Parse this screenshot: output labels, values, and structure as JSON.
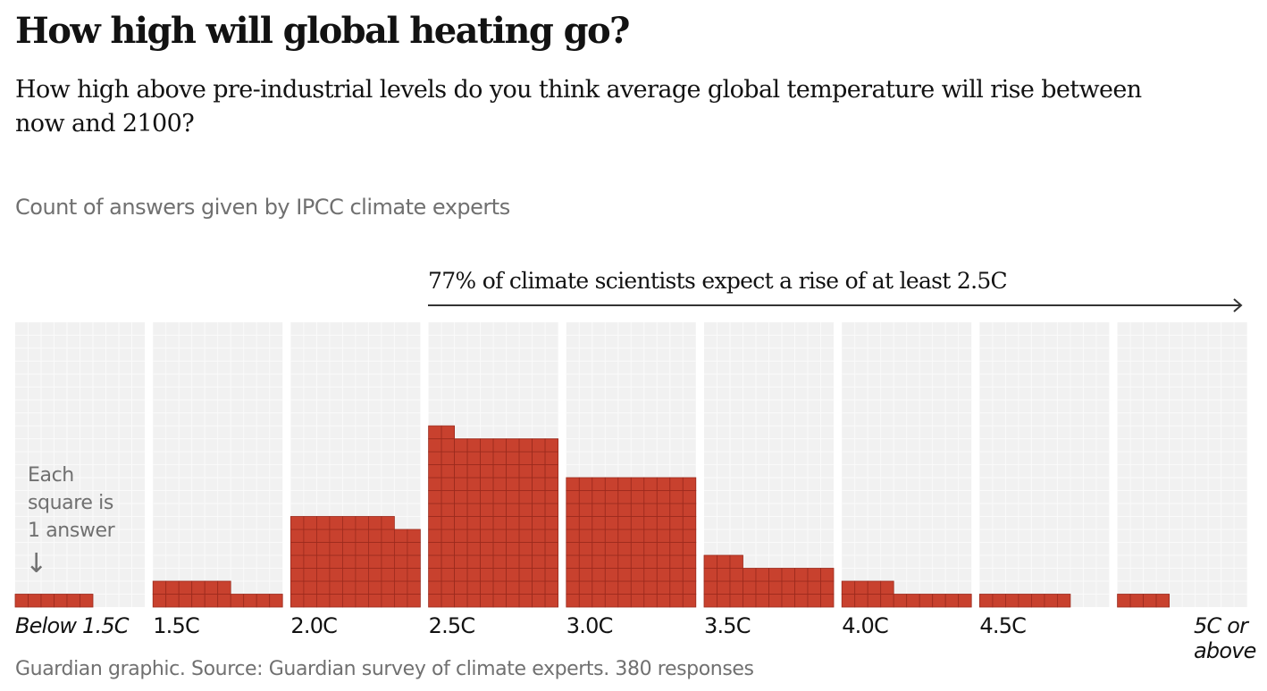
{
  "header": {
    "title": "How high will global heating go?",
    "subtitle": "How high above pre-industrial levels do you think average global temperature will rise between now and 2100?"
  },
  "chart_label": "Count of answers given by IPCC climate experts",
  "annotation": {
    "text": "77% of climate scientists expect a rise of at least 2.5C",
    "starts_at_category": "2.5C",
    "direction": "right"
  },
  "note": {
    "line1": "Each",
    "line2": "square is",
    "line3": "1 answer",
    "arrow": "↓"
  },
  "source": "Guardian graphic. Source: Guardian survey of climate experts. 380 responses",
  "colors": {
    "square_fill": "#c8412e",
    "square_border": "#9b2a1d",
    "empty_cell": "#f1f1f1",
    "empty_cell_line": "#fafafa"
  },
  "chart_data": {
    "type": "waffle-bar",
    "title": "How high will global heating go?",
    "ylabel": "Count of answers given by IPCC climate experts",
    "units_per_square": 1,
    "squares_per_row": 10,
    "grid_rows": 22,
    "categories": [
      "Below 1.5C",
      "1.5C",
      "2.0C",
      "2.5C",
      "3.0C",
      "3.5C",
      "4.0C",
      "4.5C",
      "5C or above"
    ],
    "italic_categories": [
      "Below 1.5C",
      "5C or above"
    ],
    "values": [
      6,
      16,
      68,
      132,
      100,
      33,
      14,
      7,
      4
    ],
    "total": 380
  }
}
